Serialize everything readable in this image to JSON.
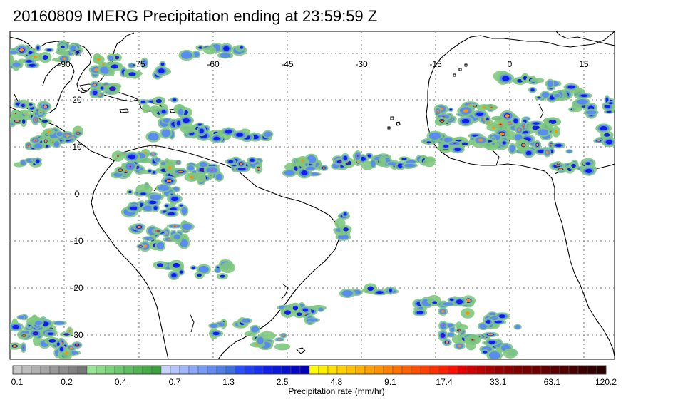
{
  "title": "20160809 IMERG Precipitation ending at 23:59:59 Z",
  "map": {
    "lon_labels": [
      "-90",
      "-75",
      "-60",
      "-45",
      "-30",
      "-15",
      "0",
      "15"
    ],
    "lat_labels": [
      "30",
      "20",
      "10",
      "0",
      "-10",
      "-20",
      "-30"
    ],
    "coastline_color": "#000000",
    "gridline_style": "dotted"
  },
  "colorbar": {
    "tick_labels": [
      "0.1",
      "0.2",
      "0.4",
      "0.7",
      "1.3",
      "2.5",
      "4.8",
      "9.1",
      "17.4",
      "33.1",
      "63.1",
      "120.2"
    ],
    "caption": "Precipitation rate (mm/hr)",
    "colors": [
      "#c8c8c8",
      "#bcbcbc",
      "#b0b0b0",
      "#a4a4a4",
      "#989898",
      "#8c8c8c",
      "#808080",
      "#767676",
      "#96e696",
      "#88dc88",
      "#7ad27a",
      "#6cc86c",
      "#5ebe5e",
      "#50b450",
      "#46aa46",
      "#3ca03c",
      "#c8d2ff",
      "#b4c4ff",
      "#a0b6ff",
      "#8ca8fa",
      "#789af5",
      "#648cf0",
      "#507ee6",
      "#3c70dc",
      "#2850ff",
      "#2040f8",
      "#1830f0",
      "#1020e8",
      "#0c18dc",
      "#0810d0",
      "#0408c4",
      "#0000b8",
      "#ffff00",
      "#fff000",
      "#ffe000",
      "#ffd000",
      "#ffc000",
      "#ffb000",
      "#ffa000",
      "#ff9000",
      "#ff8000",
      "#ff7000",
      "#ff6000",
      "#ff5000",
      "#ff4000",
      "#ff3000",
      "#ff2000",
      "#ff1000",
      "#e60000",
      "#d20000",
      "#be0000",
      "#aa0000",
      "#960000",
      "#8c0000",
      "#820000",
      "#780000",
      "#6e0000",
      "#640000",
      "#5a0000",
      "#500000",
      "#460000",
      "#3c0000",
      "#320000",
      "#280000"
    ]
  },
  "precip_palette": {
    "light": "#7ec87e",
    "moderate": "#5a8cf0",
    "heavy": "#1020e8",
    "intense": "#ff9000",
    "extreme": "#e60000"
  }
}
